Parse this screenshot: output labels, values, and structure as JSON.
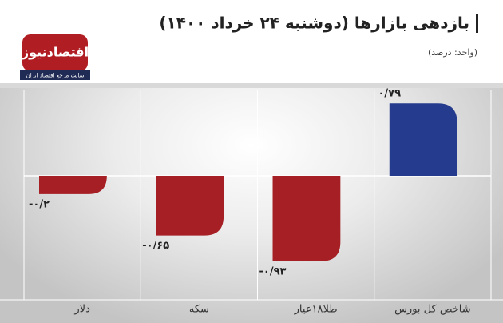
{
  "header": {
    "brand": "اقتصادنیوز",
    "tagline": "سایت مرجع اقتصاد ایران"
  },
  "chart_data": {
    "type": "bar",
    "title": "بازدهی بازارها (دوشنبه ۲۴ خرداد ۱۴۰۰)",
    "subtitle": "(واحد: درصد)",
    "categories": [
      "دلار",
      "سکه",
      "طلا۱۸عیار",
      "شاخص کل بورس"
    ],
    "values": [
      -0.2,
      -0.65,
      -0.93,
      0.79
    ],
    "value_labels": [
      "-۰/۲",
      "-۰/۶۵",
      "-۰/۹۳",
      "۰/۷۹"
    ],
    "colors": [
      "#a51f24",
      "#a51f24",
      "#a51f24",
      "#243b8e"
    ],
    "ylim": [
      -1.35,
      0.94
    ]
  }
}
